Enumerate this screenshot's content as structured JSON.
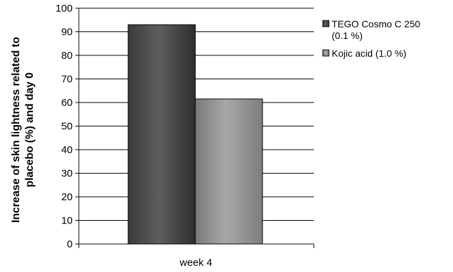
{
  "chart_data": {
    "type": "bar",
    "categories": [
      "week 4"
    ],
    "series": [
      {
        "name": "TEGO Cosmo C 250 (0.1 %)",
        "name_lines": [
          "TEGO Cosmo C 250",
          "(0.1 %)"
        ],
        "values": [
          93
        ],
        "color": "#4a4a4a"
      },
      {
        "name": "Kojic acid (1.0 %)",
        "name_lines": [
          "Kojic acid (1.0 %)"
        ],
        "values": [
          61.5
        ],
        "color": "#9a9a9a"
      }
    ],
    "ylabel_lines": [
      "Increase of skin lightness related to",
      "placebo (%) and day 0"
    ],
    "xlabel": "",
    "ylim": [
      0,
      100
    ],
    "yticks": [
      0,
      10,
      20,
      30,
      40,
      50,
      60,
      70,
      80,
      90,
      100
    ],
    "grid": true,
    "legend_position": "right"
  }
}
